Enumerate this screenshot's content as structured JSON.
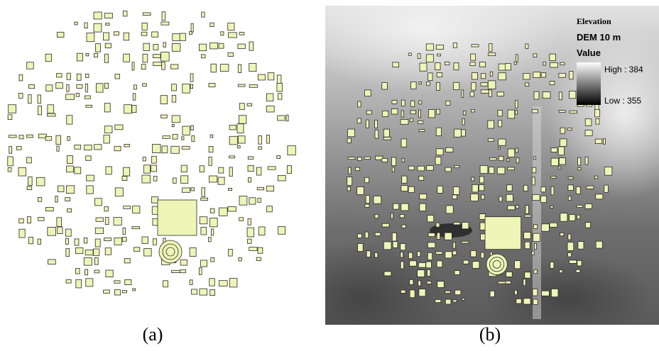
{
  "panels": [
    {
      "label": "(a)"
    },
    {
      "label": "(b)"
    }
  ],
  "legend": {
    "title": "Elevation",
    "subtitle": "DEM 10 m",
    "field": "Value",
    "high": "High : 384",
    "low": "Low : 355"
  }
}
